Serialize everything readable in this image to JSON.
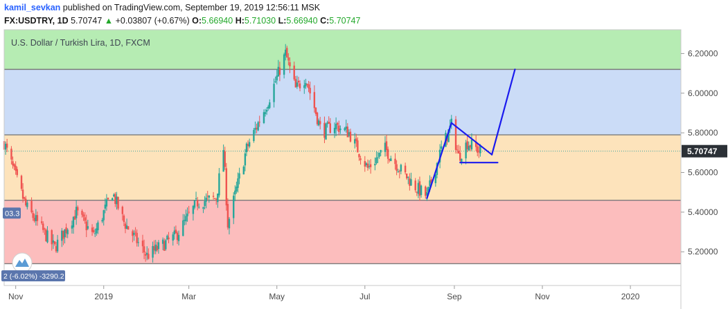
{
  "header": {
    "user": "kamil_sevkan",
    "published": "published on TradingView.com, September 19, 2019 12:56:11 MSK",
    "symbol": "FX:USDTRY, 1D",
    "last": "5.70747",
    "change_arrow": "▲",
    "change": "+0.03807 (+0.67%)",
    "o_label": "O:",
    "o_val": "5.66940",
    "h_label": "H:",
    "h_val": "5.71030",
    "l_label": "L:",
    "l_val": "5.66940",
    "c_label": "C:",
    "c_val": "5.70747"
  },
  "chart_data": {
    "type": "candlestick",
    "title": "U.S. Dollar / Turkish Lira, 1D, FXCM",
    "ylim": [
      5.03,
      6.32
    ],
    "y_ticks": [
      "6.20000",
      "6.00000",
      "5.80000",
      "5.60000",
      "5.40000",
      "5.20000"
    ],
    "y_tick_values": [
      6.2,
      6.0,
      5.8,
      5.6,
      5.4,
      5.2
    ],
    "x_ticks": [
      "Nov",
      "2019",
      "Mar",
      "May",
      "Jul",
      "Sep",
      "Nov",
      "2020"
    ],
    "x_tick_dates": [
      "2018-11-01",
      "2019-01-01",
      "2019-03-01",
      "2019-05-01",
      "2019-07-01",
      "2019-09-01",
      "2019-11-01",
      "2020-01-01"
    ],
    "x_range": [
      "2018-10-24",
      "2020-02-05"
    ],
    "price_label": "5.70747",
    "last_price": 5.70747,
    "left_badge_1": "03.3",
    "left_badge_1_price": 5.395,
    "left_badge_2": "2 (-6.02%) -3290.2",
    "zones": [
      {
        "name": "green",
        "from": 6.12,
        "to": 6.32,
        "color": "#b6ecb3"
      },
      {
        "name": "blue",
        "from": 5.79,
        "to": 6.12,
        "color": "#cbdcf7"
      },
      {
        "name": "orange",
        "from": 5.46,
        "to": 5.79,
        "color": "#fde3bb"
      },
      {
        "name": "red",
        "from": 5.14,
        "to": 5.46,
        "color": "#fcbdbd"
      }
    ],
    "hlines": [
      6.12,
      5.79,
      5.46,
      5.14
    ],
    "drawn_lines": [
      {
        "points": [
          [
            "2019-08-13",
            5.47
          ],
          [
            "2019-08-30",
            5.85
          ]
        ]
      },
      {
        "points": [
          [
            "2019-08-30",
            5.85
          ],
          [
            "2019-09-27",
            5.69
          ]
        ]
      },
      {
        "points": [
          [
            "2019-09-05",
            5.65
          ],
          [
            "2019-10-01",
            5.65
          ]
        ]
      },
      {
        "points": [
          [
            "2019-09-27",
            5.69
          ],
          [
            "2019-10-13",
            6.12
          ]
        ]
      }
    ],
    "key_points": [
      [
        "2018-10-24",
        5.75
      ],
      [
        "2018-11-08",
        5.43
      ],
      [
        "2018-11-28",
        5.22
      ],
      [
        "2018-12-13",
        5.4
      ],
      [
        "2018-12-25",
        5.28
      ],
      [
        "2019-01-07",
        5.5
      ],
      [
        "2019-01-15",
        5.35
      ],
      [
        "2019-01-31",
        5.18
      ],
      [
        "2019-02-20",
        5.28
      ],
      [
        "2019-03-07",
        5.45
      ],
      [
        "2019-03-20",
        5.47
      ],
      [
        "2019-03-25",
        5.72
      ],
      [
        "2019-03-28",
        5.34
      ],
      [
        "2019-04-10",
        5.72
      ],
      [
        "2019-04-25",
        5.96
      ],
      [
        "2019-05-07",
        6.2
      ],
      [
        "2019-05-14",
        6.02
      ],
      [
        "2019-05-21",
        6.08
      ],
      [
        "2019-06-01",
        5.8
      ],
      [
        "2019-06-10",
        5.84
      ],
      [
        "2019-06-20",
        5.8
      ],
      [
        "2019-07-03",
        5.62
      ],
      [
        "2019-07-15",
        5.72
      ],
      [
        "2019-07-25",
        5.62
      ],
      [
        "2019-08-06",
        5.52
      ],
      [
        "2019-08-13",
        5.48
      ],
      [
        "2019-08-23",
        5.72
      ],
      [
        "2019-08-30",
        5.84
      ],
      [
        "2019-09-04",
        5.68
      ],
      [
        "2019-09-10",
        5.75
      ],
      [
        "2019-09-19",
        5.70747
      ]
    ]
  },
  "colors": {
    "up": "#26a69a",
    "down": "#ef5350",
    "drawing": "#1a1aee",
    "price_tag": "#2b3036",
    "badge": "#5b76ad"
  }
}
